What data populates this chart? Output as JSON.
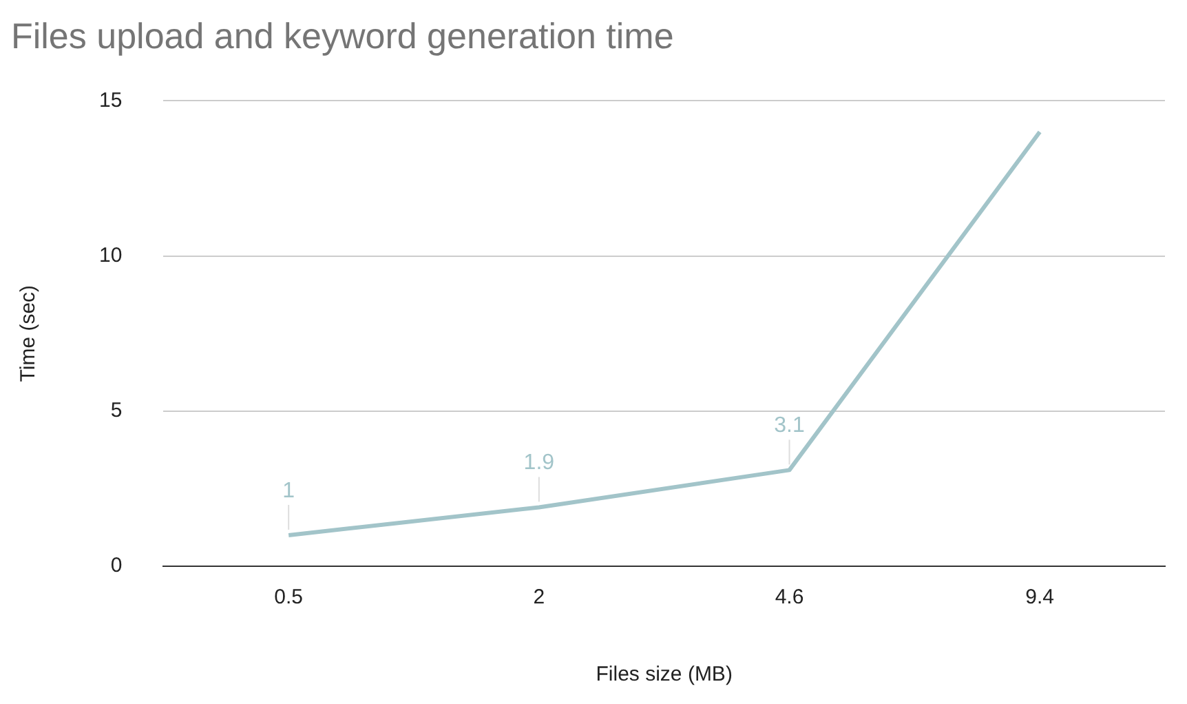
{
  "chart_data": {
    "type": "line",
    "title": "Files upload and keyword generation time",
    "xlabel": "Files size (MB)",
    "ylabel": "Time (sec)",
    "categories": [
      "0.5",
      "2",
      "4.6",
      "9.4"
    ],
    "series": [
      {
        "color": "#a2c4c9",
        "values": [
          1,
          1.9,
          3.1,
          14
        ],
        "value_labels": [
          "1",
          "1.9",
          "3.1",
          null
        ]
      }
    ],
    "ylim": [
      0,
      15
    ],
    "yticks": [
      0,
      5,
      10,
      15
    ],
    "grid": "y",
    "legend": false,
    "marker": "none",
    "line_style": "solid"
  }
}
